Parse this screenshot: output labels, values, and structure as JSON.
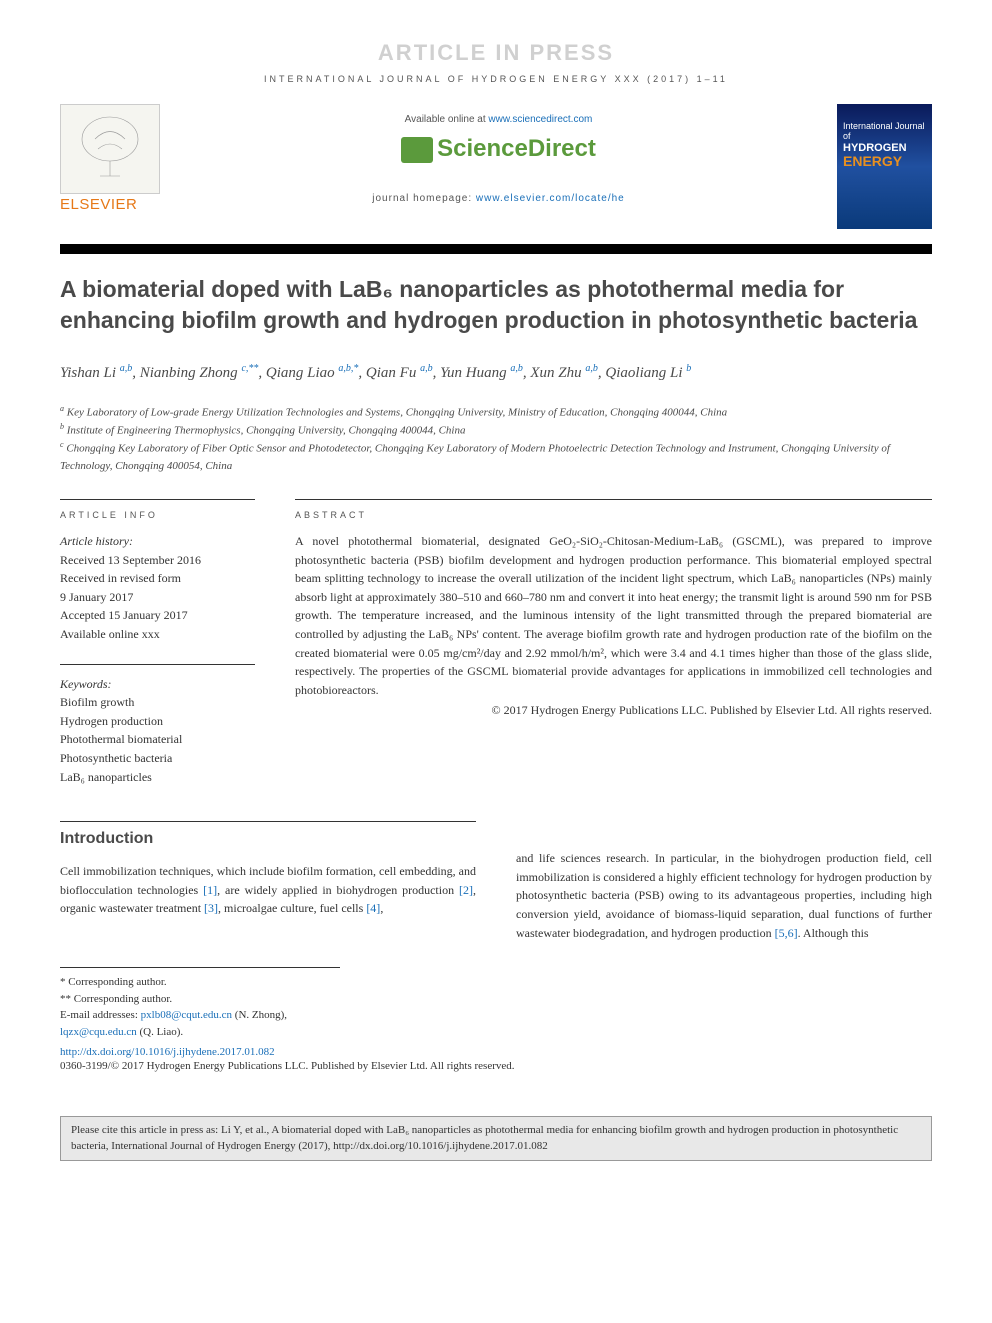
{
  "banner": {
    "press": "ARTICLE IN PRESS"
  },
  "journal_header": {
    "line": "INTERNATIONAL JOURNAL OF HYDROGEN ENERGY XXX (2017) 1–11",
    "available_prefix": "Available online at ",
    "available_url": "www.sciencedirect.com",
    "sd_logo": "ScienceDirect",
    "homepage_prefix": "journal homepage: ",
    "homepage_url": "www.elsevier.com/locate/he",
    "elsevier_text": "ELSEVIER",
    "cover": {
      "top": "International Journal of",
      "hy": "HYDROGEN",
      "en": "ENERGY"
    }
  },
  "title": "A biomaterial doped with LaB₆ nanoparticles as photothermal media for enhancing biofilm growth and hydrogen production in photosynthetic bacteria",
  "authors_html": "Yishan Li <span class='sup'>a,b</span>, Nianbing Zhong <span class='sup'>c,**</span>, Qiang Liao <span class='sup'>a,b,*</span>, Qian Fu <span class='sup'>a,b</span>, Yun Huang <span class='sup'>a,b</span>, Xun Zhu <span class='sup'>a,b</span>, Qiaoliang Li <span class='sup'>b</span>",
  "affiliations": [
    {
      "sup": "a",
      "text": "Key Laboratory of Low-grade Energy Utilization Technologies and Systems, Chongqing University, Ministry of Education, Chongqing 400044, China"
    },
    {
      "sup": "b",
      "text": "Institute of Engineering Thermophysics, Chongqing University, Chongqing 400044, China"
    },
    {
      "sup": "c",
      "text": "Chongqing Key Laboratory of Fiber Optic Sensor and Photodetector, Chongqing Key Laboratory of Modern Photoelectric Detection Technology and Instrument, Chongqing University of Technology, Chongqing 400054, China"
    }
  ],
  "info": {
    "article_info_label": "ARTICLE INFO",
    "abstract_label": "ABSTRACT",
    "history_title": "Article history:",
    "history": [
      "Received 13 September 2016",
      "Received in revised form",
      "9 January 2017",
      "Accepted 15 January 2017",
      "Available online xxx"
    ],
    "keywords_title": "Keywords:",
    "keywords": [
      "Biofilm growth",
      "Hydrogen production",
      "Photothermal biomaterial",
      "Photosynthetic bacteria",
      "LaB₆ nanoparticles"
    ]
  },
  "abstract": "A novel photothermal biomaterial, designated GeO₂-SiO₂-Chitosan-Medium-LaB₆ (GSCML), was prepared to improve photosynthetic bacteria (PSB) biofilm development and hydrogen production performance. This biomaterial employed spectral beam splitting technology to increase the overall utilization of the incident light spectrum, which LaB₆ nanoparticles (NPs) mainly absorb light at approximately 380–510 and 660–780 nm and convert it into heat energy; the transmit light is around 590 nm for PSB growth. The temperature increased, and the luminous intensity of the light transmitted through the prepared biomaterial are controlled by adjusting the LaB₆ NPs' content. The average biofilm growth rate and hydrogen production rate of the biofilm on the created biomaterial were 0.05 mg/cm²/day and 2.92 mmol/h/m², which were 3.4 and 4.1 times higher than those of the glass slide, respectively. The properties of the GSCML biomaterial provide advantages for applications in immobilized cell technologies and photobioreactors.",
  "copyright": "© 2017 Hydrogen Energy Publications LLC. Published by Elsevier Ltd. All rights reserved.",
  "intro": {
    "heading": "Introduction",
    "col1": "Cell immobilization techniques, which include biofilm formation, cell embedding, and bioflocculation technologies [1], are widely applied in biohydrogen production [2], organic wastewater treatment [3], microalgae culture, fuel cells [4],",
    "col2": "and life sciences research. In particular, in the biohydrogen production field, cell immobilization is considered a highly efficient technology for hydrogen production by photosynthetic bacteria (PSB) owing to its advantageous properties, including high conversion yield, avoidance of biomass-liquid separation, dual functions of further wastewater biodegradation, and hydrogen production [5,6]. Although this"
  },
  "footnotes": {
    "star1": "* Corresponding author.",
    "star2": "** Corresponding author.",
    "email_label": "E-mail addresses: ",
    "email1": "pxlb08@cqut.edu.cn",
    "email1_who": " (N. Zhong), ",
    "email2": "lqzx@cqu.edu.cn",
    "email2_who": " (Q. Liao).",
    "doi": "http://dx.doi.org/10.1016/j.ijhydene.2017.01.082",
    "issn_line": "0360-3199/© 2017 Hydrogen Energy Publications LLC. Published by Elsevier Ltd. All rights reserved."
  },
  "cite_box": "Please cite this article in press as: Li Y, et al., A biomaterial doped with LaB₆ nanoparticles as photothermal media for enhancing biofilm growth and hydrogen production in photosynthetic bacteria, International Journal of Hydrogen Energy (2017), http://dx.doi.org/10.1016/j.ijhydene.2017.01.082",
  "colors": {
    "elsevier_orange": "#e67817",
    "sd_green": "#5b9a3c",
    "link_blue": "#1a6fb8",
    "banner_gray": "#d0d0d0",
    "text_gray": "#4a4a4a",
    "cite_bg": "#e8e8e8"
  }
}
